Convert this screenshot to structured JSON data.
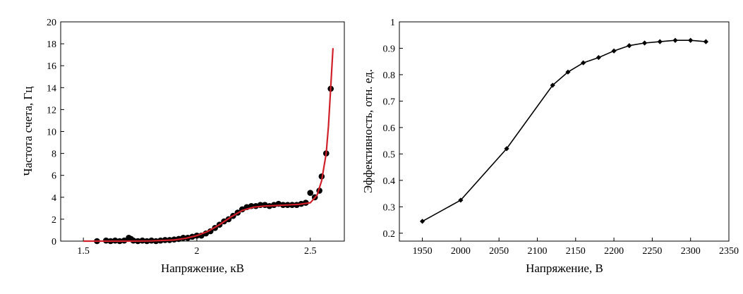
{
  "chart_data": [
    {
      "type": "scatter",
      "xlabel": "Напряжение, кВ",
      "ylabel": "Частота счета, Гц",
      "xlim": [
        1.4,
        2.65
      ],
      "ylim": [
        0,
        20
      ],
      "xticks": [
        "1.5",
        "2",
        "2.5"
      ],
      "xtick_values": [
        1.5,
        2.0,
        2.5
      ],
      "yticks": [
        "0",
        "2",
        "4",
        "6",
        "8",
        "10",
        "12",
        "14",
        "16",
        "18",
        "20"
      ],
      "ytick_values": [
        0,
        2,
        4,
        6,
        8,
        10,
        12,
        14,
        16,
        18,
        20
      ],
      "grid": false,
      "colors": {
        "points": "#000000",
        "fit": "#d0202a"
      },
      "series": [
        {
          "kind": "points",
          "x": [
            1.56,
            1.6,
            1.62,
            1.64,
            1.66,
            1.68,
            1.7,
            1.71,
            1.72,
            1.74,
            1.76,
            1.78,
            1.8,
            1.82,
            1.84,
            1.86,
            1.88,
            1.9,
            1.92,
            1.94,
            1.96,
            1.98,
            2.0,
            2.02,
            2.04,
            2.06,
            2.08,
            2.1,
            2.12,
            2.14,
            2.16,
            2.18,
            2.2,
            2.22,
            2.24,
            2.26,
            2.28,
            2.3,
            2.32,
            2.34,
            2.36,
            2.38,
            2.4,
            2.42,
            2.44,
            2.46,
            2.48,
            2.5,
            2.52,
            2.54,
            2.55,
            2.57,
            2.59
          ],
          "y": [
            0.0,
            0.05,
            0.0,
            0.05,
            0.0,
            0.05,
            0.3,
            0.2,
            0.05,
            0.0,
            0.05,
            0.0,
            0.05,
            0.0,
            0.05,
            0.1,
            0.1,
            0.15,
            0.2,
            0.3,
            0.3,
            0.4,
            0.5,
            0.5,
            0.7,
            0.9,
            1.2,
            1.5,
            1.8,
            2.0,
            2.3,
            2.6,
            2.9,
            3.1,
            3.2,
            3.2,
            3.3,
            3.3,
            3.2,
            3.3,
            3.4,
            3.3,
            3.3,
            3.3,
            3.3,
            3.4,
            3.5,
            4.4,
            4.0,
            4.6,
            5.9,
            8.0,
            13.9
          ]
        },
        {
          "kind": "fit",
          "x": [
            1.5,
            1.6,
            1.7,
            1.8,
            1.9,
            1.95,
            2.0,
            2.05,
            2.1,
            2.15,
            2.2,
            2.25,
            2.3,
            2.35,
            2.4,
            2.45,
            2.5,
            2.53,
            2.55,
            2.57,
            2.58,
            2.59,
            2.6
          ],
          "y": [
            0.0,
            0.0,
            0.0,
            0.02,
            0.1,
            0.25,
            0.5,
            0.9,
            1.5,
            2.2,
            2.8,
            3.1,
            3.2,
            3.25,
            3.3,
            3.35,
            3.5,
            4.2,
            5.5,
            8.0,
            10.5,
            14.0,
            17.6
          ]
        }
      ]
    },
    {
      "type": "line",
      "xlabel": "Напряжение, В",
      "ylabel": "Эффективность, отн. ед.",
      "xlim": [
        1920,
        2350
      ],
      "ylim": [
        0.17,
        1.0
      ],
      "xticks": [
        "1950",
        "2000",
        "2050",
        "2100",
        "2150",
        "2200",
        "2250",
        "2300",
        "2350"
      ],
      "xtick_values": [
        1950,
        2000,
        2050,
        2100,
        2150,
        2200,
        2250,
        2300,
        2350
      ],
      "yticks": [
        "0.2",
        "0.3",
        "0.4",
        "0.5",
        "0.6",
        "0.7",
        "0.8",
        "0.9",
        "1"
      ],
      "ytick_values": [
        0.2,
        0.3,
        0.4,
        0.5,
        0.6,
        0.7,
        0.8,
        0.9,
        1.0
      ],
      "grid": false,
      "colors": {
        "line": "#000000"
      },
      "series": [
        {
          "x": [
            1950,
            2000,
            2060,
            2120,
            2140,
            2160,
            2180,
            2200,
            2220,
            2240,
            2260,
            2280,
            2300,
            2320
          ],
          "y": [
            0.245,
            0.325,
            0.52,
            0.76,
            0.81,
            0.845,
            0.865,
            0.89,
            0.91,
            0.92,
            0.925,
            0.93,
            0.93,
            0.925
          ]
        }
      ]
    }
  ]
}
